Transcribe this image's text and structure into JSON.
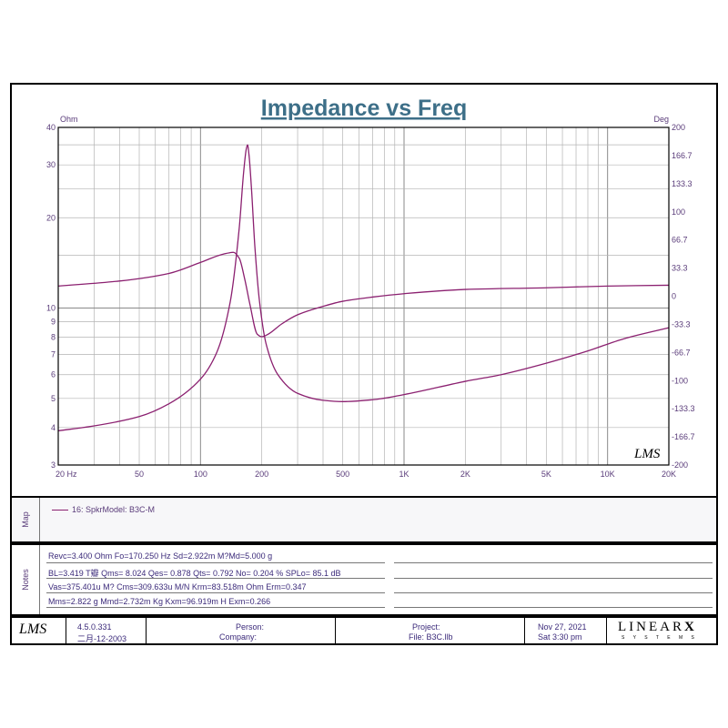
{
  "chart_data": {
    "type": "line",
    "title": "Impedance vs Freq",
    "xscale": "log",
    "xlim": [
      20,
      20000
    ],
    "x_ticks": [
      20,
      50,
      100,
      200,
      500,
      1000,
      2000,
      5000,
      10000,
      20000
    ],
    "x_tick_labels": [
      "20  Hz",
      "50",
      "100",
      "200",
      "500",
      "1K",
      "2K",
      "5K",
      "10K",
      "20K"
    ],
    "y_left": {
      "label": "Ohm",
      "scale": "log",
      "lim": [
        3,
        40
      ],
      "ticks": [
        3,
        4,
        5,
        6,
        7,
        8,
        9,
        10,
        20,
        30,
        40
      ],
      "tick_labels": [
        "3",
        "4",
        "5",
        "6",
        "7",
        "8",
        "9",
        "10",
        "20",
        "30",
        "40"
      ]
    },
    "y_right": {
      "label": "Deg",
      "scale": "linear",
      "lim": [
        -200,
        200
      ],
      "ticks": [
        200,
        166.7,
        133.3,
        100,
        66.7,
        33.3,
        0,
        -33.3,
        -66.7,
        -100,
        -133.3,
        -166.7,
        -200
      ],
      "tick_labels": [
        "200",
        "166.7",
        "133.3",
        "100",
        "66.7",
        "33.3",
        "0",
        "-33.3",
        "-66.7",
        "-100",
        "-133.3",
        "-166.7",
        "-200"
      ]
    },
    "grid": true,
    "series": [
      {
        "name": "16: SpkrModel: B3C-M",
        "axis": "left",
        "unit": "Ohm",
        "x": [
          20,
          30,
          50,
          70,
          100,
          120,
          140,
          155,
          163,
          168,
          170.25,
          173,
          178,
          185,
          195,
          210,
          240,
          300,
          400,
          500,
          700,
          1000,
          2000,
          3000,
          5000,
          8000,
          12000,
          20000
        ],
        "y": [
          3.9,
          4.05,
          4.35,
          4.8,
          5.8,
          7.1,
          10.5,
          18.5,
          28.5,
          34.0,
          35.0,
          32.5,
          25.0,
          16.0,
          10.5,
          7.6,
          6.0,
          5.2,
          4.93,
          4.88,
          4.95,
          5.15,
          5.7,
          6.0,
          6.55,
          7.2,
          7.9,
          8.6
        ]
      },
      {
        "name": "",
        "axis": "right",
        "unit": "Deg",
        "x": [
          20,
          40,
          70,
          100,
          130,
          145,
          155,
          165,
          175,
          190,
          200,
          215,
          250,
          300,
          400,
          500,
          700,
          1000,
          2000,
          5000,
          10000,
          20000
        ],
        "y": [
          12,
          18,
          27,
          40,
          50,
          52,
          45,
          20,
          -10,
          -45,
          -48,
          -45,
          -33,
          -22,
          -12,
          -6,
          -1,
          3,
          8,
          10,
          12,
          13
        ]
      }
    ]
  },
  "map": {
    "label": "Map",
    "legend": "16: SpkrModel: B3C-M"
  },
  "notes": {
    "label": "Notes",
    "lines": [
      "Revc=3.400 Ohm  Fo=170.250 Hz  Sd=2.922m M?Md=5.000 g",
      "BL=3.419 T瓣  Qms= 8.024  Qes= 0.878  Qts= 0.792  No= 0.204 %  SPLo= 85.1 dB",
      "Vas=375.401u M? Cms=309.633u M/N  Krm=83.518m Ohm  Erm=0.347",
      "Mms=2.822 g  Mmd=2.732m Kg  Kxm=96.919m H  Exm=0.266"
    ]
  },
  "footer": {
    "logo": "LMS",
    "version": "4.5.0.331",
    "version_date": "二月-12-2003",
    "person_label": "Person:",
    "company_label": "Company:",
    "project_label": "Project:",
    "file_label": "File: B3C.llb",
    "date": "Nov 27, 2021",
    "time": "Sat  3:30 pm",
    "brand": "LINEAR",
    "brand_x": "X",
    "brand_sub": "S Y S T E M S"
  },
  "plot_logo": "LMS",
  "colors": {
    "curve": "#8b2070",
    "grid": "#b4b4b4",
    "title": "#3d6f88",
    "axis_text": "#5a3c7a"
  }
}
